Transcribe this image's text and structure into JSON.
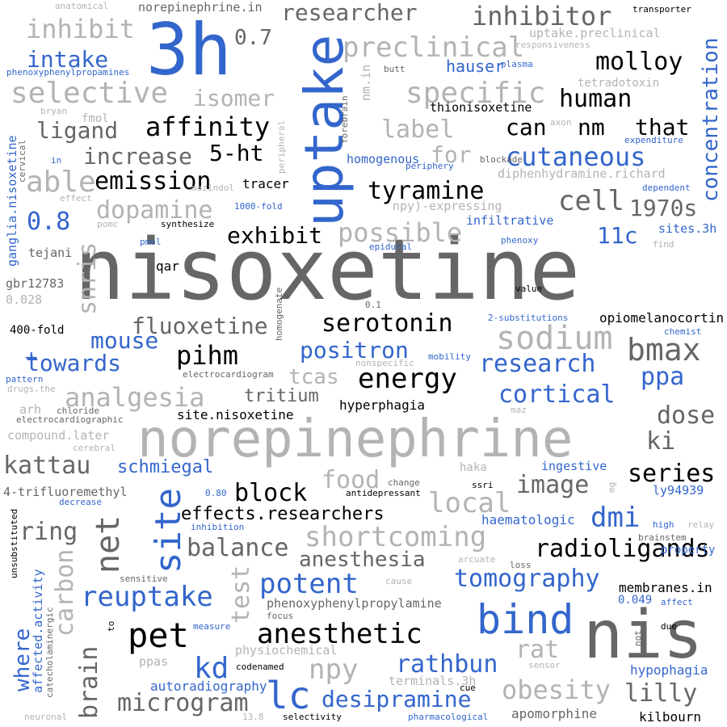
{
  "palette": {
    "black": "#000000",
    "dark_gray": "#666666",
    "light_gray": "#b3b3b3",
    "blue": "#3366cc",
    "background": "#ffffff"
  },
  "words": [
    "nisoxetine",
    "norepinephrine",
    "nis",
    "uptake",
    "3h",
    "bind",
    "site",
    "pet",
    "lc",
    "anesthetic",
    "sodium",
    "bmax",
    "energy",
    "reuptake",
    "shortcoming",
    "net",
    "radioligands",
    "kd",
    "npy",
    "obesity",
    "analgesia",
    "serotonin",
    "fluoxetine",
    "pihm",
    "possible",
    "cell",
    "tyramine",
    "emission",
    "exhibit",
    "affinity",
    "human",
    "molloy",
    "inhibitor",
    "researcher",
    "preclinical",
    "specific",
    "selective",
    "isomer",
    "inhibit",
    "intake",
    "0.7",
    "label",
    "for",
    "can",
    "nm",
    "that",
    "cutaneous",
    "concentration",
    "ligand",
    "increase",
    "5-ht",
    "able",
    "dopamine",
    "1970s",
    "11c",
    "0.8",
    "snris",
    "mouse",
    "towards",
    "positron",
    "research",
    "cortical",
    "ppa",
    "dose",
    "ki",
    "series",
    "dmi",
    "image",
    "local",
    "food",
    "block",
    "effects.researchers",
    "kattau",
    "schmiegal",
    "ring",
    "balance",
    "anesthesia",
    "potent",
    "tomography",
    "carbon",
    "test",
    "brain",
    "microgram",
    "desipramine",
    "rathbun",
    "rat",
    "lilly",
    "where",
    "tcas",
    "tritium",
    "autoradiography",
    "apomorphine",
    "kilbourn",
    "hypophagia",
    "opiomelanocortin",
    "hyperphagia",
    "site.nisoxetine",
    "phenoxyphenylpropylamine",
    "membranes.in",
    "haematologic",
    "ingestive",
    "ly94939",
    "infiltrative",
    "sites.3h",
    "400-fold",
    "gbr12783",
    "0.028",
    "qar",
    "tejani",
    "tracer",
    "homogenous",
    "hauser",
    "thionisoxetine",
    "diphenhydramine.richard",
    "expenditure",
    "dependent",
    "periphery",
    "blockade",
    "npy)-expressing",
    "mazindol",
    "synthesize",
    "pomc",
    "pmol",
    "1000-fold",
    "epidural",
    "phenoxy",
    "value",
    "2-substitutions",
    "chemist",
    "mobility",
    "nonspecific",
    "electrocardiogram",
    "chloride",
    "electrocardiographic",
    "arh",
    "compound.later",
    "cerebral",
    "4-trifluoremethyl",
    "0.80",
    "decrease",
    "inhibition",
    "antidepressant",
    "ssri",
    "haka",
    "change",
    "maz",
    "high",
    "relay",
    "brainstem",
    "property",
    "affect",
    "0.049",
    "due",
    "not",
    "sensitive",
    "cause",
    "loss",
    "arcuate",
    "focus",
    "measure",
    "physiochemical",
    "codenamed",
    "selectivity",
    "pharmacological",
    "neuronal",
    "13.8",
    "terminals.3h",
    "cue",
    "sensor",
    "ganglia.nisoxetine",
    "affected.activity",
    "catecholaminergic",
    "unsubstituted",
    "to",
    "ppas",
    "anatomical",
    "norepinephrine.in",
    "transporter",
    "uptake.preclinical",
    "responsiveness",
    "phenoxyphenylpropamines",
    "butt",
    "plasma",
    "tetradotoxin",
    "nm.in",
    "bryan",
    "fmol",
    "axon",
    "cervical",
    "forebrain",
    "peripheral",
    "effect",
    "homogenate",
    "0.1",
    "drugs.the",
    "pattern",
    "find",
    "in",
    "mg"
  ]
}
